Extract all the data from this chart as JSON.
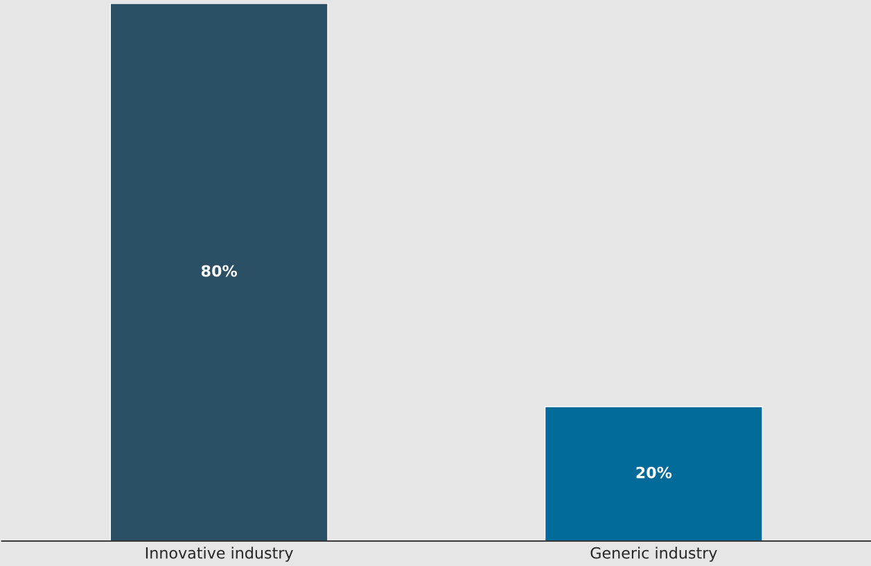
{
  "chart_data": {
    "type": "bar",
    "categories": [
      "Innovative industry",
      "Generic industry"
    ],
    "values": [
      80,
      20
    ],
    "colors": [
      "#2b4f65",
      "#006b99"
    ],
    "value_labels": [
      "80%",
      "20%"
    ]
  }
}
